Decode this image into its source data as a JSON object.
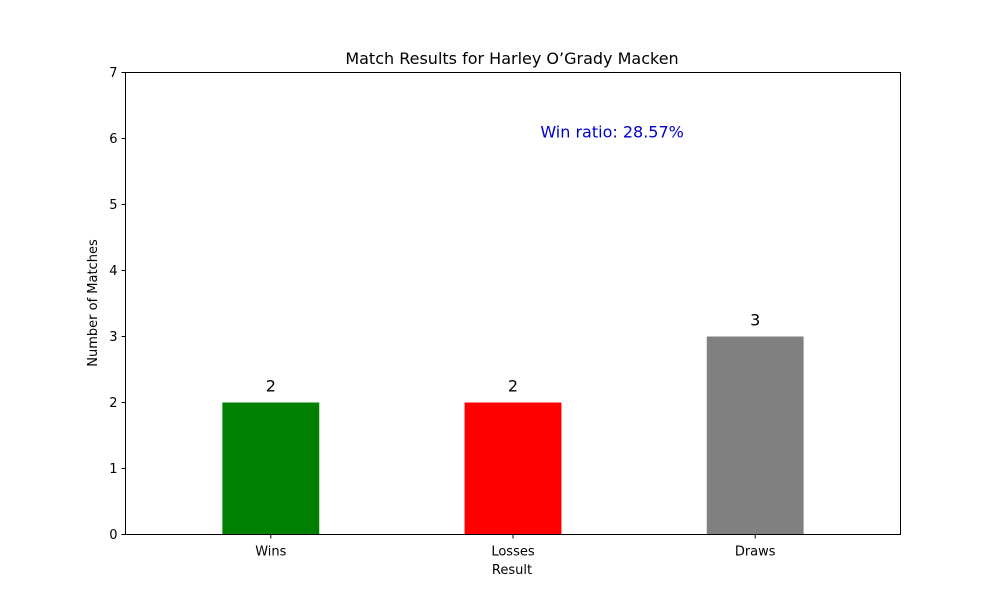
{
  "chart_data": {
    "type": "bar",
    "title": "Match Results for Harley O’Grady Macken",
    "xlabel": "Result",
    "ylabel": "Number of Matches",
    "categories": [
      "Wins",
      "Losses",
      "Draws"
    ],
    "values": [
      2,
      2,
      3
    ],
    "data_labels": [
      "2",
      "2",
      "3"
    ],
    "colors": [
      "#008000",
      "#ff0000",
      "#808080"
    ],
    "ylim": [
      0,
      7
    ],
    "yticks": [
      0,
      1,
      2,
      3,
      4,
      5,
      6,
      7
    ],
    "ytick_labels": [
      "0",
      "1",
      "2",
      "3",
      "4",
      "5",
      "6",
      "7"
    ],
    "grid": false,
    "annotation": {
      "text": "Win ratio: 28.57%",
      "color": "#0000cc",
      "x_category_position": 1.5,
      "y": 6
    }
  }
}
